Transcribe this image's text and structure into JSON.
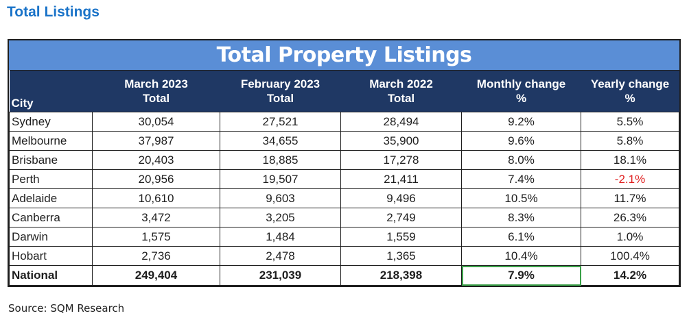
{
  "page": {
    "heading": "Total Listings",
    "source": "Source: SQM Research"
  },
  "table": {
    "title": "Total Property Listings",
    "header_color": "#1f3864",
    "title_color": "#5a8ed6",
    "negative_color": "#e02020",
    "columns": [
      {
        "line1": "",
        "line2": "City"
      },
      {
        "line1": "March 2023",
        "line2": "Total"
      },
      {
        "line1": "February 2023",
        "line2": "Total"
      },
      {
        "line1": "March 2022",
        "line2": "Total"
      },
      {
        "line1": "Monthly change",
        "line2": "%"
      },
      {
        "line1": "Yearly change",
        "line2": "%"
      }
    ],
    "rows": [
      {
        "city": "Sydney",
        "mar2023": "30,054",
        "feb2023": "27,521",
        "mar2022": "28,494",
        "monthly": "9.2%",
        "yearly": "5.5%"
      },
      {
        "city": "Melbourne",
        "mar2023": "37,987",
        "feb2023": "34,655",
        "mar2022": "35,900",
        "monthly": "9.6%",
        "yearly": "5.8%"
      },
      {
        "city": "Brisbane",
        "mar2023": "20,403",
        "feb2023": "18,885",
        "mar2022": "17,278",
        "monthly": "8.0%",
        "yearly": "18.1%"
      },
      {
        "city": "Perth",
        "mar2023": "20,956",
        "feb2023": "19,507",
        "mar2022": "21,411",
        "monthly": "7.4%",
        "yearly": "-2.1%"
      },
      {
        "city": "Adelaide",
        "mar2023": "10,610",
        "feb2023": "9,603",
        "mar2022": "9,496",
        "monthly": "10.5%",
        "yearly": "11.7%"
      },
      {
        "city": "Canberra",
        "mar2023": "3,472",
        "feb2023": "3,205",
        "mar2022": "2,749",
        "monthly": "8.3%",
        "yearly": "26.3%"
      },
      {
        "city": "Darwin",
        "mar2023": "1,575",
        "feb2023": "1,484",
        "mar2022": "1,559",
        "monthly": "6.1%",
        "yearly": "1.0%"
      },
      {
        "city": "Hobart",
        "mar2023": "2,736",
        "feb2023": "2,478",
        "mar2022": "1,365",
        "monthly": "10.4%",
        "yearly": "100.4%"
      }
    ],
    "national": {
      "city": "National",
      "mar2023": "249,404",
      "feb2023": "231,039",
      "mar2022": "218,398",
      "monthly": "7.9%",
      "yearly": "14.2%"
    }
  }
}
